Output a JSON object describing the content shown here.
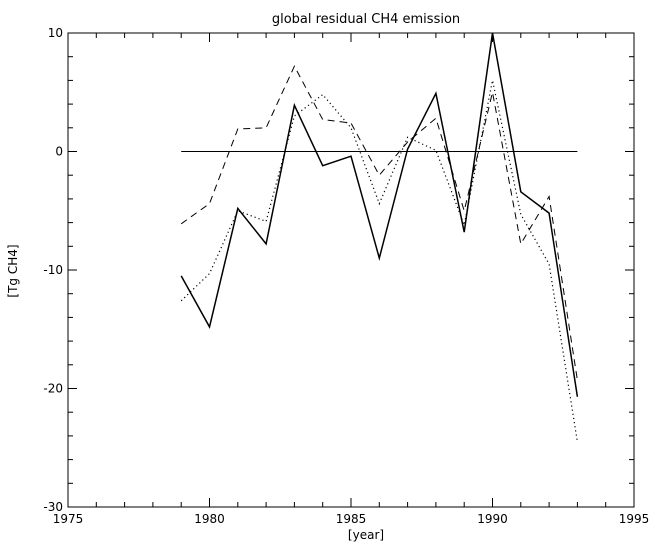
{
  "chart_data": {
    "type": "line",
    "title": "global residual CH4 emission",
    "xlabel": "[year]",
    "ylabel": "[Tg CH4]",
    "xlim": [
      1975,
      1995
    ],
    "ylim": [
      -30,
      10
    ],
    "xticks": [
      1975,
      1980,
      1985,
      1990,
      1995
    ],
    "yticks": [
      -30,
      -20,
      -10,
      0,
      10
    ],
    "grid": false,
    "x": [
      1979,
      1980,
      1981,
      1982,
      1983,
      1984,
      1985,
      1986,
      1987,
      1988,
      1989,
      1990,
      1991,
      1992,
      1993
    ],
    "series": [
      {
        "style": "solid",
        "values": [
          -10.5,
          -14.8,
          -4.8,
          -7.8,
          3.9,
          -1.2,
          -0.4,
          -9.0,
          0.2,
          4.9,
          -6.8,
          10.0,
          -3.4,
          -5.2,
          -20.7
        ]
      },
      {
        "style": "dashed",
        "values": [
          -6.1,
          -4.4,
          1.9,
          2.0,
          7.2,
          2.7,
          2.4,
          -2.0,
          0.8,
          2.8,
          -5.0,
          5.0,
          -7.8,
          -3.8,
          -19.3
        ]
      },
      {
        "style": "dotted",
        "values": [
          -12.6,
          -10.3,
          -5.0,
          -5.9,
          3.0,
          4.8,
          2.0,
          -4.4,
          1.2,
          0.1,
          -6.2,
          6.0,
          -5.3,
          -9.5,
          -24.5
        ]
      }
    ],
    "reference_line": {
      "y": 0,
      "x": [
        1979,
        1993
      ]
    }
  }
}
